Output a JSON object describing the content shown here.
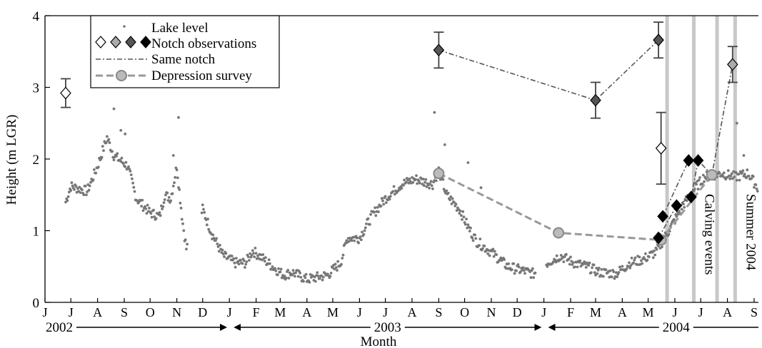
{
  "chart_data": {
    "type": "scatter",
    "xlabel": "Month",
    "ylabel": "Height  (m LGR)",
    "ylim": [
      0,
      4
    ],
    "yticks": [
      0,
      1,
      2,
      3,
      4
    ],
    "xlim": [
      "2002-06-01",
      "2004-09-06"
    ],
    "month_ticks": [
      {
        "label": "J",
        "date": "2002-06-01"
      },
      {
        "label": "J",
        "date": "2002-07-01"
      },
      {
        "label": "A",
        "date": "2002-08-01"
      },
      {
        "label": "S",
        "date": "2002-09-01"
      },
      {
        "label": "O",
        "date": "2002-10-01"
      },
      {
        "label": "N",
        "date": "2002-11-01"
      },
      {
        "label": "D",
        "date": "2002-12-01"
      },
      {
        "label": "J",
        "date": "2003-01-01"
      },
      {
        "label": "F",
        "date": "2003-02-01"
      },
      {
        "label": "M",
        "date": "2003-03-01"
      },
      {
        "label": "A",
        "date": "2003-04-01"
      },
      {
        "label": "M",
        "date": "2003-05-01"
      },
      {
        "label": "J",
        "date": "2003-06-01"
      },
      {
        "label": "J",
        "date": "2003-07-01"
      },
      {
        "label": "A",
        "date": "2003-08-01"
      },
      {
        "label": "S",
        "date": "2003-09-01"
      },
      {
        "label": "O",
        "date": "2003-10-01"
      },
      {
        "label": "N",
        "date": "2003-11-01"
      },
      {
        "label": "D",
        "date": "2003-12-01"
      },
      {
        "label": "J",
        "date": "2004-01-01"
      },
      {
        "label": "F",
        "date": "2004-02-01"
      },
      {
        "label": "M",
        "date": "2004-03-01"
      },
      {
        "label": "A",
        "date": "2004-04-01"
      },
      {
        "label": "M",
        "date": "2004-05-01"
      },
      {
        "label": "J",
        "date": "2004-06-01"
      },
      {
        "label": "J",
        "date": "2004-07-01"
      },
      {
        "label": "A",
        "date": "2004-08-01"
      },
      {
        "label": "S",
        "date": "2004-09-01"
      }
    ],
    "year_spans": [
      {
        "label": "2002",
        "start": "2002-06-01",
        "end": "2002-12-31"
      },
      {
        "label": "2003",
        "start": "2003-01-01",
        "end": "2003-12-31"
      },
      {
        "label": "2004",
        "start": "2004-01-01",
        "end": "2004-09-06"
      }
    ],
    "legend": {
      "position": "top-left",
      "entries": [
        "Lake level",
        "Notch observations",
        "Same notch",
        "Depression survey"
      ]
    },
    "lake_level_anchors": [
      {
        "x": "2002-06-25",
        "y": 1.4
      },
      {
        "x": "2002-07-01",
        "y": 1.62
      },
      {
        "x": "2002-07-20",
        "y": 1.55
      },
      {
        "x": "2002-08-01",
        "y": 1.9
      },
      {
        "x": "2002-08-12",
        "y": 2.3
      },
      {
        "x": "2002-08-20",
        "y": 2.05
      },
      {
        "x": "2002-09-05",
        "y": 1.9
      },
      {
        "x": "2002-09-15",
        "y": 1.45
      },
      {
        "x": "2002-10-01",
        "y": 1.25
      },
      {
        "x": "2002-10-12",
        "y": 1.2
      },
      {
        "x": "2002-10-18",
        "y": 1.5
      },
      {
        "x": "2002-10-25",
        "y": 1.45
      },
      {
        "x": "2002-11-01",
        "y": 1.9
      },
      {
        "x": "2002-11-08",
        "y": 1.1
      },
      {
        "x": "2002-11-12",
        "y": 0.75
      },
      {
        "x": "2002-12-01",
        "y": 1.3
      },
      {
        "x": "2002-12-12",
        "y": 0.95
      },
      {
        "x": "2002-12-25",
        "y": 0.65
      },
      {
        "x": "2003-01-08",
        "y": 0.55
      },
      {
        "x": "2003-01-20",
        "y": 0.55
      },
      {
        "x": "2003-01-28",
        "y": 0.72
      },
      {
        "x": "2003-02-08",
        "y": 0.62
      },
      {
        "x": "2003-02-20",
        "y": 0.5
      },
      {
        "x": "2003-03-05",
        "y": 0.38
      },
      {
        "x": "2003-03-15",
        "y": 0.42
      },
      {
        "x": "2003-04-01",
        "y": 0.32
      },
      {
        "x": "2003-04-25",
        "y": 0.38
      },
      {
        "x": "2003-05-10",
        "y": 0.55
      },
      {
        "x": "2003-05-18",
        "y": 0.9
      },
      {
        "x": "2003-06-01",
        "y": 0.9
      },
      {
        "x": "2003-06-15",
        "y": 1.2
      },
      {
        "x": "2003-07-01",
        "y": 1.45
      },
      {
        "x": "2003-07-20",
        "y": 1.65
      },
      {
        "x": "2003-08-05",
        "y": 1.72
      },
      {
        "x": "2003-08-25",
        "y": 1.65
      },
      {
        "x": "2003-09-01",
        "y": 1.85
      },
      {
        "x": "2003-09-10",
        "y": 1.5
      },
      {
        "x": "2003-09-25",
        "y": 1.3
      },
      {
        "x": "2003-10-05",
        "y": 1.05
      },
      {
        "x": "2003-10-15",
        "y": 0.85
      },
      {
        "x": "2003-11-01",
        "y": 0.7
      },
      {
        "x": "2003-11-20",
        "y": 0.5
      },
      {
        "x": "2003-12-05",
        "y": 0.45
      },
      {
        "x": "2003-12-20",
        "y": 0.4
      },
      {
        "x": "2004-01-05",
        "y": 0.55
      },
      {
        "x": "2004-01-20",
        "y": 0.65
      },
      {
        "x": "2004-02-05",
        "y": 0.55
      },
      {
        "x": "2004-02-20",
        "y": 0.5
      },
      {
        "x": "2004-03-05",
        "y": 0.42
      },
      {
        "x": "2004-03-25",
        "y": 0.4
      },
      {
        "x": "2004-04-10",
        "y": 0.55
      },
      {
        "x": "2004-04-25",
        "y": 0.6
      },
      {
        "x": "2004-05-10",
        "y": 0.7
      },
      {
        "x": "2004-05-25",
        "y": 1.0
      },
      {
        "x": "2004-06-10",
        "y": 1.35
      },
      {
        "x": "2004-06-25",
        "y": 1.6
      },
      {
        "x": "2004-07-05",
        "y": 1.75
      },
      {
        "x": "2004-07-25",
        "y": 1.8
      },
      {
        "x": "2004-08-10",
        "y": 1.75
      },
      {
        "x": "2004-08-25",
        "y": 1.8
      },
      {
        "x": "2004-09-05",
        "y": 1.6
      }
    ],
    "lake_level_gaps": [
      [
        "2002-11-14",
        "2002-11-29"
      ],
      [
        "2003-12-23",
        "2004-01-03"
      ]
    ],
    "lake_level_spikes": [
      {
        "x": "2002-08-20",
        "y": 2.7
      },
      {
        "x": "2002-08-28",
        "y": 2.4
      },
      {
        "x": "2002-09-02",
        "y": 2.35
      },
      {
        "x": "2002-08-05",
        "y": 2.0
      },
      {
        "x": "2002-10-28",
        "y": 2.05
      },
      {
        "x": "2002-11-03",
        "y": 2.58
      },
      {
        "x": "2003-08-27",
        "y": 2.65
      },
      {
        "x": "2003-09-08",
        "y": 2.2
      },
      {
        "x": "2003-10-05",
        "y": 1.95
      },
      {
        "x": "2003-10-20",
        "y": 1.6
      },
      {
        "x": "2004-08-12",
        "y": 2.5
      },
      {
        "x": "2004-08-20",
        "y": 2.05
      }
    ],
    "notch_observations": [
      {
        "date": "2002-06-25",
        "y": 2.92,
        "err": 0.2,
        "style": "open"
      },
      {
        "date": "2003-09-01",
        "y": 3.52,
        "err": 0.25,
        "style": "dark"
      },
      {
        "date": "2004-03-01",
        "y": 2.82,
        "err": 0.25,
        "style": "dark"
      },
      {
        "date": "2004-05-13",
        "y": 3.66,
        "err": 0.25,
        "style": "dark"
      },
      {
        "date": "2004-05-16",
        "y": 2.15,
        "err": 0.5,
        "style": "open"
      },
      {
        "date": "2004-05-13",
        "y": 0.9,
        "err": 0,
        "style": "black"
      },
      {
        "date": "2004-05-18",
        "y": 1.2,
        "err": 0,
        "style": "black"
      },
      {
        "date": "2004-06-03",
        "y": 1.35,
        "err": 0,
        "style": "black"
      },
      {
        "date": "2004-06-20",
        "y": 1.47,
        "err": 0,
        "style": "black"
      },
      {
        "date": "2004-06-17",
        "y": 1.98,
        "err": 0,
        "style": "black"
      },
      {
        "date": "2004-06-28",
        "y": 1.98,
        "err": 0,
        "style": "black"
      },
      {
        "date": "2004-08-07",
        "y": 3.32,
        "err": 0.25,
        "style": "light"
      }
    ],
    "same_notch_lines": [
      [
        {
          "date": "2003-09-01",
          "y": 3.52
        },
        {
          "date": "2004-03-01",
          "y": 2.82
        },
        {
          "date": "2004-05-13",
          "y": 3.66
        }
      ],
      [
        {
          "date": "2004-05-13",
          "y": 0.9
        },
        {
          "date": "2004-06-03",
          "y": 1.35
        },
        {
          "date": "2004-06-20",
          "y": 1.47
        },
        {
          "date": "2004-06-28",
          "y": 1.98
        },
        {
          "date": "2004-07-14",
          "y": 1.78
        },
        {
          "date": "2004-08-07",
          "y": 3.32
        }
      ],
      [
        {
          "date": "2004-05-18",
          "y": 1.2
        },
        {
          "date": "2004-06-17",
          "y": 1.98
        },
        {
          "date": "2004-06-28",
          "y": 1.98
        }
      ]
    ],
    "depression_survey": [
      {
        "date": "2003-09-01",
        "y": 1.8
      },
      {
        "date": "2004-01-18",
        "y": 0.97
      },
      {
        "date": "2004-05-16",
        "y": 0.87
      },
      {
        "date": "2004-07-14",
        "y": 1.78
      }
    ],
    "event_lines": [
      {
        "date": "2004-05-23"
      },
      {
        "date": "2004-06-23"
      },
      {
        "date": "2004-07-20"
      },
      {
        "date": "2004-08-10"
      }
    ],
    "event_labels": [
      {
        "text": "Calving events",
        "date": "2004-06-23"
      },
      {
        "text": "Summer 2004",
        "date": "2004-08-10"
      }
    ],
    "colors": {
      "lake_level": "#777777",
      "event_line": "#c8c8c8",
      "notch_open": "#ffffff",
      "notch_light": "#aaaaaa",
      "notch_dark": "#555555",
      "notch_black": "#000000",
      "same_notch": "#555555",
      "depression_line": "#999999",
      "depression_marker": "#bbbbbb"
    }
  }
}
